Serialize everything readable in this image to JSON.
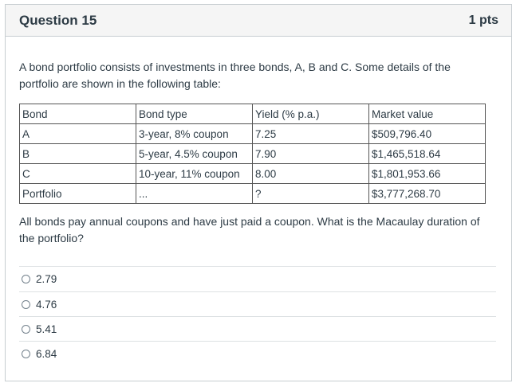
{
  "question": {
    "title": "Question 15",
    "points": "1 pts",
    "intro": "A bond portfolio consists of investments in three bonds, A, B and C. Some details of the portfolio are shown in the following table:",
    "table": {
      "headers": [
        "Bond",
        "Bond type",
        "Yield (% p.a.)",
        "Market value"
      ],
      "rows": [
        [
          "A",
          "3-year, 8% coupon",
          "7.25",
          "$509,796.40"
        ],
        [
          "B",
          "5-year, 4.5% coupon",
          "7.90",
          "$1,465,518.64"
        ],
        [
          "C",
          "10-year, 11% coupon",
          "8.00",
          "$1,801,953.66"
        ],
        [
          "Portfolio",
          "...",
          "?",
          "$3,777,268.70"
        ]
      ]
    },
    "prompt": "All bonds pay annual coupons and have just paid a coupon. What is the Macaulay duration of the portfolio?",
    "answers": [
      "2.79",
      "4.76",
      "5.41",
      "6.84"
    ]
  }
}
